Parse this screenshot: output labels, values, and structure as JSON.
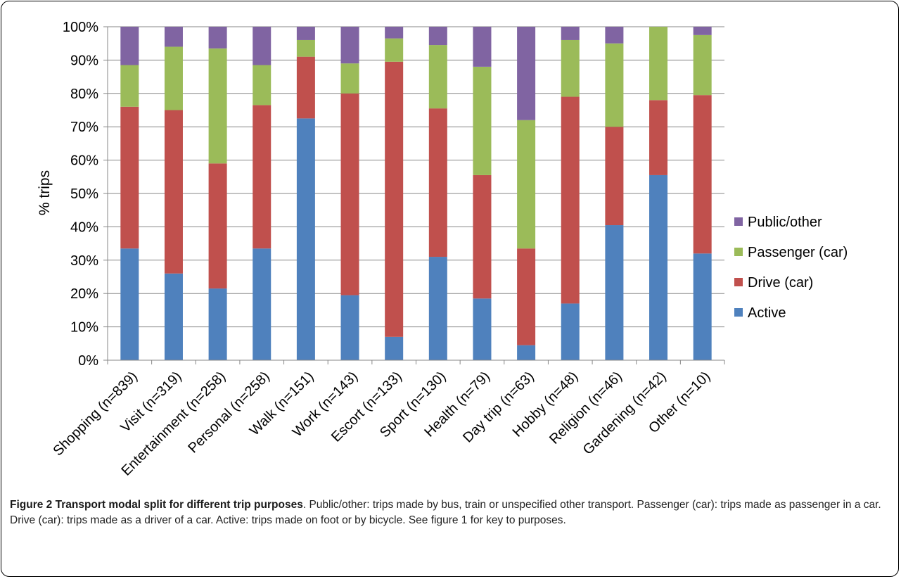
{
  "chart_data": {
    "type": "bar",
    "stacked": true,
    "categories": [
      "Shopping (n=839)",
      "Visit (n=319)",
      "Entertainment (n=258)",
      "Personal (n=258)",
      "Walk (n=151)",
      "Work (n=143)",
      "Escort (n=133)",
      "Sport (n=130)",
      "Health (n=79)",
      "Day trip (n=63)",
      "Hobby (n=48)",
      "Religion (n=46)",
      "Gardening (n=42)",
      "Other (n=10)"
    ],
    "series": [
      {
        "name": "Active",
        "color": "#4f81bd",
        "values": [
          33.5,
          26,
          21.5,
          33.5,
          72.5,
          19.5,
          7,
          31,
          18.5,
          4.5,
          17,
          40.5,
          55.5,
          32
        ]
      },
      {
        "name": "Drive (car)",
        "color": "#c0504d",
        "values": [
          42.5,
          49,
          37.5,
          43,
          18.5,
          60.5,
          82.5,
          44.5,
          37,
          29,
          62,
          29.5,
          22.5,
          47.5
        ]
      },
      {
        "name": "Passenger (car)",
        "color": "#9bbb59",
        "values": [
          12.5,
          19,
          34.5,
          12,
          5,
          9,
          7,
          19,
          32.5,
          38.5,
          17,
          25,
          22,
          18
        ]
      },
      {
        "name": "Public/other",
        "color": "#8064a2",
        "values": [
          11.5,
          6,
          6.5,
          11.5,
          4,
          11,
          3.5,
          5.5,
          12,
          28,
          4,
          5,
          0,
          2.5
        ]
      }
    ],
    "y_tick_labels": [
      "0%",
      "10%",
      "20%",
      "30%",
      "40%",
      "50%",
      "60%",
      "70%",
      "80%",
      "90%",
      "100%"
    ],
    "ylabel": "% trips",
    "ylim": [
      0,
      100
    ],
    "grid": true,
    "legend_position": "right",
    "legend_order": [
      "Public/other",
      "Passenger (car)",
      "Drive (car)",
      "Active"
    ]
  },
  "caption": {
    "bold": "Figure 2 Transport modal split for different trip purposes",
    "text": ". Public/other: trips made by bus, train or unspecified other transport. Passenger (car): trips made as passenger in a car. Drive (car): trips made as a driver of a car. Active: trips made on foot or by bicycle. See figure 1 for key to purposes."
  }
}
